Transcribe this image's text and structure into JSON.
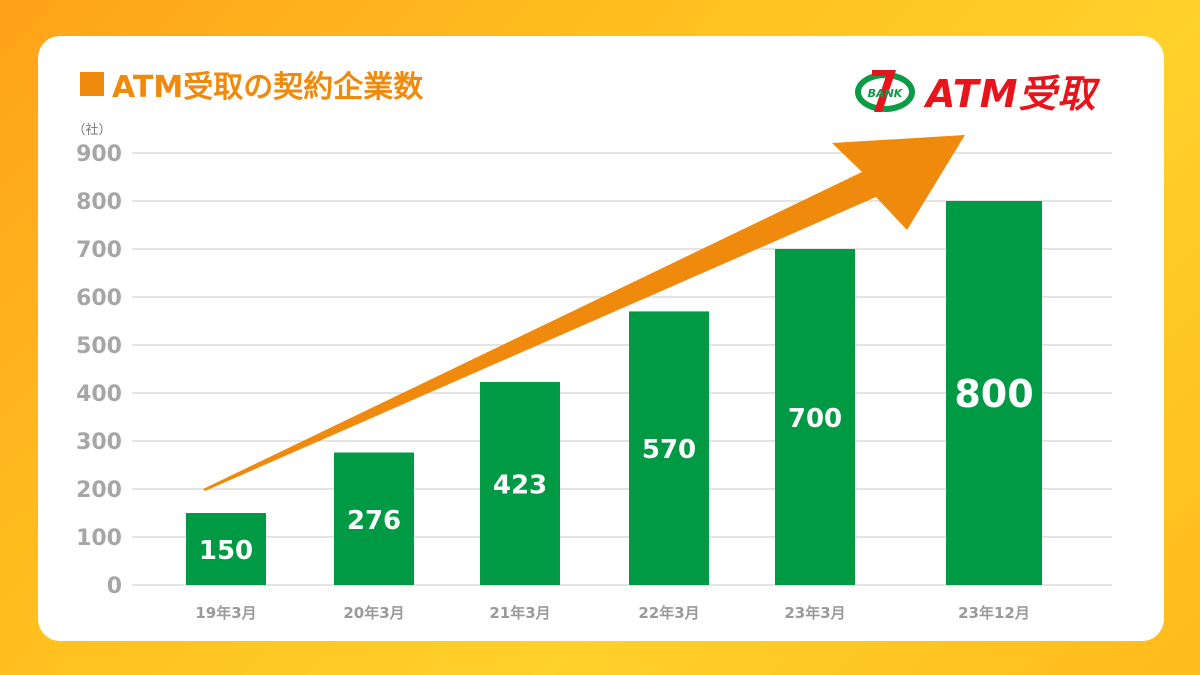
{
  "title": "ATM受取の契約企業数",
  "logo": {
    "badge_text": "BANK",
    "badge_digit": "7",
    "brand_text": "ATM受取",
    "colors": {
      "red": "#e8141c",
      "green": "#0b9a45",
      "orange": "#f08a0c"
    }
  },
  "chart_data": {
    "type": "bar",
    "title": "ATM受取の契約企業数",
    "ylabel": "（社）",
    "xlabel": "",
    "categories": [
      "19年3月",
      "20年3月",
      "21年3月",
      "22年3月",
      "23年3月",
      "23年12月"
    ],
    "values": [
      150,
      276,
      423,
      570,
      700,
      800
    ],
    "ylim": [
      0,
      900
    ],
    "yticks": [
      0,
      100,
      200,
      300,
      400,
      500,
      600,
      700,
      800,
      900
    ],
    "grid": true,
    "legend": "none",
    "bar_color": "#009944",
    "trend_arrow": {
      "color": "#f08a0c",
      "direction": "up-right"
    }
  }
}
